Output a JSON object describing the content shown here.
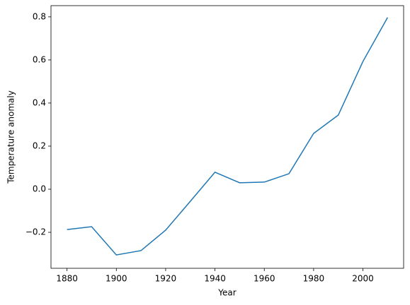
{
  "chart_data": {
    "type": "line",
    "x_label": "Year",
    "y_label": "Temperature anomaly",
    "x": [
      1880,
      1890,
      1900,
      1910,
      1920,
      1930,
      1940,
      1950,
      1960,
      1970,
      1980,
      1990,
      2000,
      2010
    ],
    "series": [
      {
        "color": "#1f77b4",
        "values": [
          -0.187,
          -0.174,
          -0.305,
          -0.285,
          -0.19,
          -0.056,
          0.079,
          0.03,
          0.033,
          0.072,
          0.259,
          0.344,
          0.593,
          0.797
        ]
      }
    ],
    "xlim": [
      1873.5,
      2016.5
    ],
    "xticks": [
      1880,
      1900,
      1920,
      1940,
      1960,
      1980,
      2000
    ],
    "ylim": [
      -0.367,
      0.852
    ],
    "yticks": [
      {
        "value": -0.2,
        "label": "−0.2"
      },
      {
        "value": 0,
        "label": "0.0"
      },
      {
        "value": 0.2,
        "label": "0.2"
      },
      {
        "value": 0.4,
        "label": "0.4"
      },
      {
        "value": 0.6,
        "label": "0.6"
      },
      {
        "value": 0.8,
        "label": "0.8"
      }
    ]
  }
}
